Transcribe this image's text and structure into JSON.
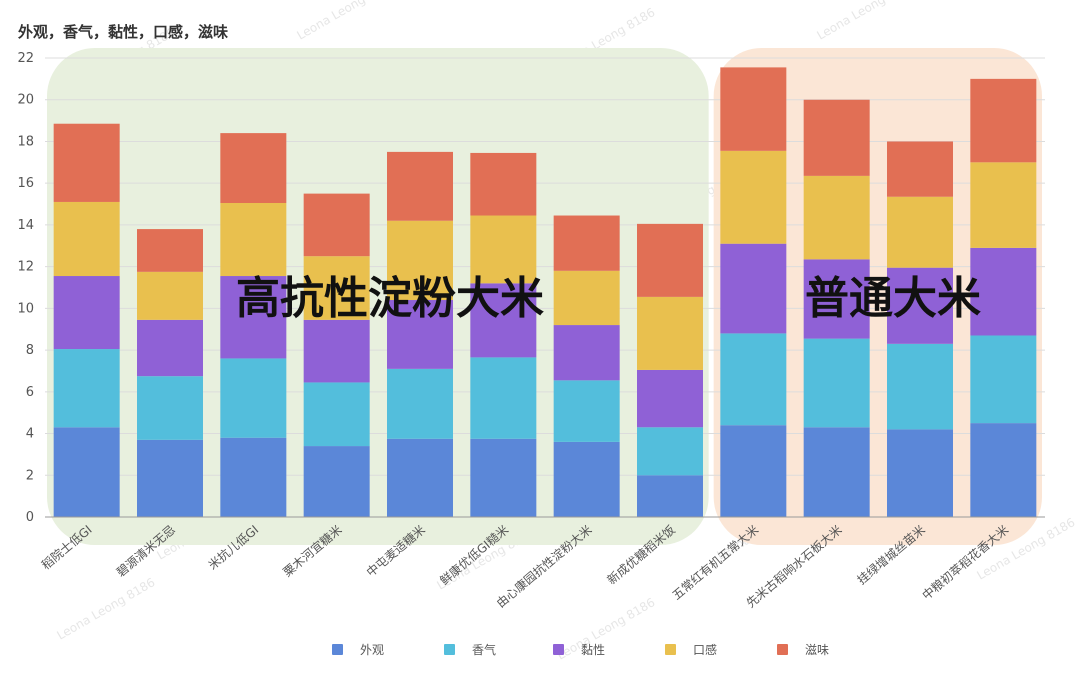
{
  "chart_data": {
    "type": "bar",
    "stacked": true,
    "title": "外观，香气，黏性，口感，滋味",
    "ylim": [
      0,
      22
    ],
    "yticks": [
      0,
      2,
      4,
      6,
      8,
      10,
      12,
      14,
      16,
      18,
      20,
      22
    ],
    "grid": true,
    "legend_position": "bottom",
    "categories": [
      "稻院士低GI",
      "碧源清米无忌",
      "米抗儿低GI",
      "粟木河宜糖米",
      "中屯麦适糖米",
      "鲜康优低GI糙米",
      "由心康园抗性淀粉大米",
      "新成优糖稻米饭",
      "五常红有机五常大米",
      "先米古稻响水石板大米",
      "挂绿增城丝苗米",
      "中粮初萃稻花香大米"
    ],
    "series": [
      {
        "name": "外观",
        "color": "#5b87d8",
        "values": [
          4.3,
          3.7,
          3.8,
          3.4,
          3.75,
          3.75,
          3.6,
          2.0,
          4.4,
          4.3,
          4.2,
          4.5
        ]
      },
      {
        "name": "香气",
        "color": "#53bedc",
        "values": [
          3.75,
          3.05,
          3.8,
          3.05,
          3.35,
          3.9,
          2.95,
          2.3,
          4.4,
          4.25,
          4.1,
          4.2
        ]
      },
      {
        "name": "黏性",
        "color": "#8f61d6",
        "values": [
          3.5,
          2.7,
          3.95,
          3.0,
          3.3,
          3.55,
          2.65,
          2.75,
          4.3,
          3.8,
          3.65,
          4.2
        ]
      },
      {
        "name": "口感",
        "color": "#e9c04e",
        "values": [
          3.55,
          2.3,
          3.5,
          3.05,
          3.8,
          3.25,
          2.6,
          3.5,
          4.45,
          4.0,
          3.4,
          4.1
        ]
      },
      {
        "name": "滋味",
        "color": "#e16f55",
        "values": [
          3.75,
          2.05,
          3.35,
          3.0,
          3.3,
          3.0,
          2.65,
          3.5,
          4.0,
          3.65,
          2.65,
          4.0
        ]
      }
    ],
    "groups": [
      {
        "label": "高抗性淀粉大米",
        "from": 0,
        "to": 7,
        "color": "#e8f0de"
      },
      {
        "label": "普通大米",
        "from": 8,
        "to": 11,
        "color": "#fbe6d6"
      }
    ]
  },
  "watermark": "Leona Leong 8186"
}
